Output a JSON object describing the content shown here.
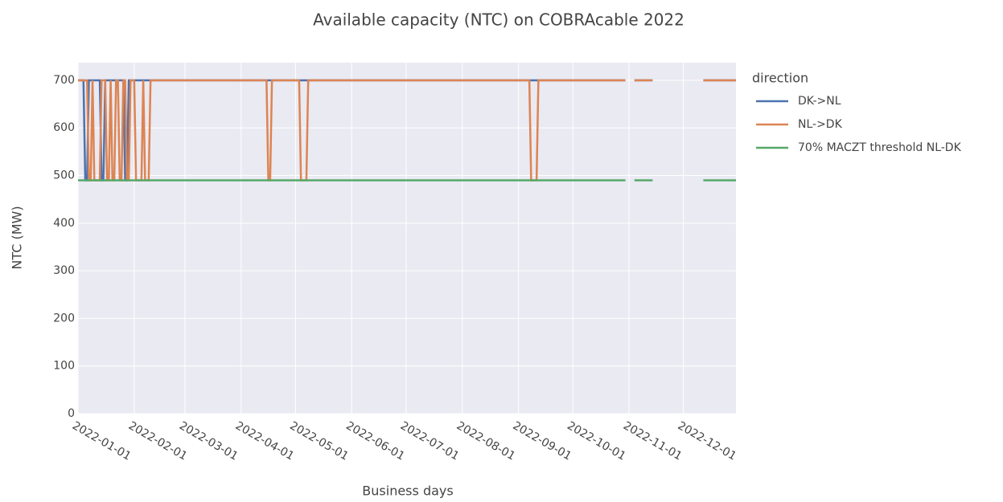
{
  "chart_data": {
    "type": "line",
    "title": "Available capacity (NTC) on COBRAcable 2022",
    "x_label": "Business days",
    "y_label": "NTC (MW)",
    "legend_title": "direction",
    "x": [
      "2022-01-01",
      "2022-01-04",
      "2022-01-05",
      "2022-01-06",
      "2022-01-07",
      "2022-01-08",
      "2022-01-09",
      "2022-01-10",
      "2022-01-13",
      "2022-01-14",
      "2022-01-15",
      "2022-01-16",
      "2022-01-17",
      "2022-01-18",
      "2022-01-19",
      "2022-01-20",
      "2022-01-21",
      "2022-01-22",
      "2022-01-23",
      "2022-01-24",
      "2022-01-25",
      "2022-01-26",
      "2022-01-27",
      "2022-01-28",
      "2022-01-29",
      "2022-01-30",
      "2022-02-01",
      "2022-02-02",
      "2022-02-05",
      "2022-02-06",
      "2022-02-07",
      "2022-02-09",
      "2022-02-10",
      "2022-04-15",
      "2022-04-16",
      "2022-04-17",
      "2022-04-18",
      "2022-05-03",
      "2022-05-04",
      "2022-05-07",
      "2022-05-08",
      "2022-09-07",
      "2022-09-08",
      "2022-09-11",
      "2022-09-12",
      "2022-10-30",
      "2022-10-31",
      "2022-11-04",
      "2022-11-14",
      "2022-11-15",
      "2022-12-12",
      "2022-12-30"
    ],
    "series": [
      {
        "name": "DK->NL",
        "color": "#4c72b0",
        "values": [
          700,
          700,
          490,
          490,
          700,
          700,
          700,
          700,
          700,
          490,
          490,
          700,
          700,
          700,
          700,
          700,
          700,
          700,
          700,
          700,
          700,
          700,
          490,
          490,
          700,
          700,
          700,
          700,
          700,
          700,
          700,
          700,
          700,
          700,
          700,
          700,
          700,
          700,
          700,
          700,
          700,
          700,
          700,
          700,
          700,
          700,
          null,
          700,
          700,
          null,
          700,
          700
        ]
      },
      {
        "name": "NL->DK",
        "color": "#dd8452",
        "values": [
          700,
          700,
          700,
          700,
          490,
          490,
          700,
          490,
          490,
          700,
          700,
          700,
          490,
          490,
          700,
          490,
          490,
          700,
          700,
          490,
          490,
          700,
          700,
          490,
          490,
          700,
          700,
          490,
          490,
          700,
          490,
          490,
          700,
          700,
          490,
          490,
          700,
          700,
          490,
          490,
          700,
          700,
          490,
          490,
          700,
          700,
          null,
          700,
          700,
          null,
          700,
          700
        ]
      },
      {
        "name": "70% MACZT threshold NL-DK",
        "color": "#55a868",
        "values": [
          490,
          490,
          490,
          490,
          490,
          490,
          490,
          490,
          490,
          490,
          490,
          490,
          490,
          490,
          490,
          490,
          490,
          490,
          490,
          490,
          490,
          490,
          490,
          490,
          490,
          490,
          490,
          490,
          490,
          490,
          490,
          490,
          490,
          490,
          490,
          490,
          490,
          490,
          490,
          490,
          490,
          490,
          490,
          490,
          490,
          490,
          null,
          490,
          490,
          null,
          490,
          490
        ]
      }
    ],
    "xlim": [
      "2022-01-01",
      "2022-12-30"
    ],
    "xticks": [
      "2022-01-01",
      "2022-02-01",
      "2022-03-01",
      "2022-04-01",
      "2022-05-01",
      "2022-06-01",
      "2022-07-01",
      "2022-08-01",
      "2022-09-01",
      "2022-10-01",
      "2022-11-01",
      "2022-12-01"
    ],
    "ylim": [
      0,
      737
    ],
    "yticks": [
      0,
      100,
      200,
      300,
      400,
      500,
      600,
      700
    ],
    "grid": true,
    "legend": "right"
  }
}
